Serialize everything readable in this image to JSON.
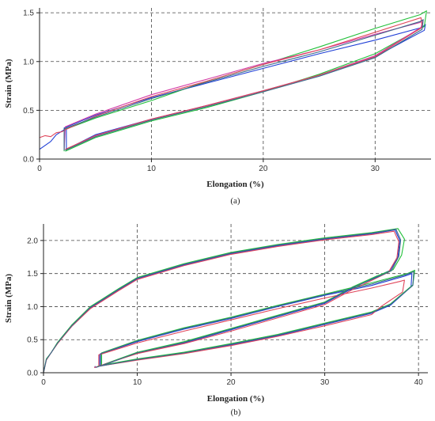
{
  "chart_data": [
    {
      "type": "line",
      "panel_label": "(a)",
      "xlabel": "Elongation (%)",
      "ylabel": "Strain (MPa)",
      "xlim": [
        0,
        35
      ],
      "ylim": [
        0,
        1.55
      ],
      "xticks": [
        0,
        10,
        20,
        30
      ],
      "yticks": [
        0.0,
        0.5,
        1.0,
        1.5
      ],
      "ytick_labels": [
        "0.0",
        "0.5",
        "1.0",
        "1.5"
      ],
      "grid": true,
      "series": [
        {
          "color": "#1f3fd6",
          "x": [
            0,
            1.0,
            1.5,
            2.2,
            2.2,
            5,
            10,
            15,
            20,
            25,
            30,
            34.2,
            34.5,
            34.4,
            30,
            25,
            20,
            15,
            10,
            5,
            2.4,
            2.4
          ],
          "y": [
            0.1,
            0.18,
            0.25,
            0.3,
            0.32,
            0.45,
            0.63,
            0.78,
            0.93,
            1.08,
            1.22,
            1.35,
            1.38,
            1.32,
            1.05,
            0.86,
            0.7,
            0.55,
            0.41,
            0.25,
            0.1,
            0.32
          ]
        },
        {
          "color": "#22c03a",
          "x": [
            2.2,
            2.2,
            5,
            10,
            15,
            20,
            25,
            30,
            34.0,
            34.6,
            34.4,
            30,
            25,
            20,
            15,
            10,
            5,
            2.3
          ],
          "y": [
            0.08,
            0.3,
            0.42,
            0.6,
            0.8,
            0.97,
            1.15,
            1.34,
            1.48,
            1.52,
            1.36,
            1.08,
            0.87,
            0.69,
            0.53,
            0.39,
            0.22,
            0.08
          ]
        },
        {
          "color": "#d43aa5",
          "x": [
            2.2,
            2.3,
            5,
            10,
            15,
            20,
            25,
            30,
            34.0,
            34.3,
            34.1,
            30,
            25,
            20,
            15,
            10,
            5,
            2.4
          ],
          "y": [
            0.1,
            0.33,
            0.46,
            0.66,
            0.82,
            0.98,
            1.12,
            1.28,
            1.4,
            1.43,
            1.35,
            1.06,
            0.86,
            0.7,
            0.55,
            0.41,
            0.24,
            0.1
          ]
        },
        {
          "color": "#e0455a",
          "x": [
            0,
            0.5,
            1.0,
            1.5,
            2.0,
            2.3,
            5,
            10,
            15,
            20,
            25,
            30,
            34.1,
            34.2,
            30,
            25,
            20,
            15,
            10,
            5,
            2.3
          ],
          "y": [
            0.22,
            0.24,
            0.23,
            0.27,
            0.28,
            0.3,
            0.44,
            0.64,
            0.8,
            0.97,
            1.12,
            1.3,
            1.45,
            1.35,
            1.05,
            0.86,
            0.7,
            0.55,
            0.41,
            0.24,
            0.1
          ]
        },
        {
          "color": "#3a6a8a",
          "x": [
            2.2,
            2.2,
            5,
            10,
            15,
            20,
            25,
            30,
            34.0,
            34.3,
            34.2,
            30,
            25,
            20,
            15,
            10,
            5,
            2.3
          ],
          "y": [
            0.09,
            0.31,
            0.43,
            0.62,
            0.79,
            0.95,
            1.1,
            1.27,
            1.41,
            1.43,
            1.33,
            1.04,
            0.85,
            0.69,
            0.54,
            0.4,
            0.23,
            0.09
          ]
        }
      ]
    },
    {
      "type": "line",
      "panel_label": "(b)",
      "xlabel": "Elongation (%)",
      "ylabel": "Strain (MPa)",
      "xlim": [
        0,
        41
      ],
      "ylim": [
        0,
        2.25
      ],
      "xticks": [
        0,
        10,
        20,
        30,
        40
      ],
      "yticks": [
        0.0,
        0.5,
        1.0,
        1.5,
        2.0
      ],
      "ytick_labels": [
        "0.0",
        "0.5",
        "1.0",
        "1.5",
        "2.0"
      ],
      "grid": true,
      "series": [
        {
          "color": "#1f3fd6",
          "x": [
            0,
            0.3,
            0.8,
            1.5,
            3,
            5,
            8,
            10,
            15,
            20,
            25,
            30,
            35,
            37.5,
            38.0,
            37.8,
            37.0,
            35.5,
            33,
            30,
            25,
            20,
            15,
            10,
            6.5,
            6.0,
            6.0,
            10,
            15,
            20,
            25,
            30,
            35,
            38.5,
            39.3,
            39.2,
            37,
            35,
            30,
            25,
            20,
            15,
            10,
            6,
            5.5,
            5.5
          ],
          "y": [
            0,
            0.2,
            0.3,
            0.45,
            0.7,
            0.98,
            1.25,
            1.42,
            1.63,
            1.8,
            1.92,
            2.02,
            2.1,
            2.16,
            2.0,
            1.75,
            1.55,
            1.45,
            1.28,
            1.05,
            0.85,
            0.65,
            0.45,
            0.3,
            0.12,
            0.1,
            0.28,
            0.47,
            0.66,
            0.82,
            1.0,
            1.17,
            1.32,
            1.46,
            1.5,
            1.3,
            1.02,
            0.9,
            0.73,
            0.56,
            0.42,
            0.3,
            0.2,
            0.1,
            0.08,
            0.1
          ]
        },
        {
          "color": "#22c03a",
          "x": [
            0,
            0.3,
            0.8,
            1.5,
            3,
            5,
            8,
            10,
            15,
            20,
            25,
            30,
            35,
            37.8,
            38.5,
            38.2,
            37.3,
            35.5,
            33,
            30,
            25,
            20,
            15,
            10,
            6.5,
            6.2,
            6.2,
            10,
            15,
            20,
            25,
            30,
            35,
            38.8,
            39.6,
            39.4,
            37,
            35,
            30,
            25,
            20,
            15,
            10,
            6,
            5.7
          ],
          "y": [
            0,
            0.21,
            0.3,
            0.46,
            0.72,
            1.0,
            1.27,
            1.44,
            1.65,
            1.82,
            1.94,
            2.04,
            2.12,
            2.18,
            2.02,
            1.78,
            1.56,
            1.46,
            1.3,
            1.07,
            0.87,
            0.67,
            0.47,
            0.31,
            0.13,
            0.11,
            0.3,
            0.49,
            0.68,
            0.84,
            1.02,
            1.19,
            1.36,
            1.5,
            1.55,
            1.33,
            1.04,
            0.92,
            0.75,
            0.58,
            0.44,
            0.31,
            0.21,
            0.11,
            0.09
          ]
        },
        {
          "color": "#e0455a",
          "x": [
            0,
            0.3,
            0.8,
            1.5,
            3,
            5,
            8,
            10,
            15,
            20,
            25,
            30,
            35,
            37.4,
            37.9,
            37.7,
            36.8,
            35.5,
            33,
            30,
            25,
            20,
            15,
            10,
            6.3,
            5.9,
            5.9,
            10,
            15,
            20,
            25,
            30,
            35,
            38.0,
            38.5,
            38.3,
            36,
            35,
            30,
            25,
            20,
            15,
            10,
            6,
            5.4
          ],
          "y": [
            0,
            0.19,
            0.3,
            0.44,
            0.7,
            0.97,
            1.24,
            1.41,
            1.62,
            1.79,
            1.91,
            2.01,
            2.09,
            2.14,
            1.98,
            1.74,
            1.52,
            1.43,
            1.26,
            1.03,
            0.83,
            0.63,
            0.44,
            0.29,
            0.12,
            0.1,
            0.27,
            0.45,
            0.63,
            0.8,
            0.97,
            1.13,
            1.28,
            1.38,
            1.4,
            1.22,
            1.0,
            0.88,
            0.71,
            0.55,
            0.41,
            0.29,
            0.19,
            0.1,
            0.08
          ]
        },
        {
          "color": "#3a6a8a",
          "x": [
            0,
            0.3,
            0.8,
            1.5,
            3,
            5,
            8,
            10,
            15,
            20,
            25,
            30,
            35,
            37.6,
            38.1,
            37.9,
            37.1,
            35.5,
            33,
            30,
            25,
            20,
            15,
            10,
            6.4,
            6.1,
            6.1,
            10,
            15,
            20,
            25,
            30,
            35,
            38.6,
            39.5,
            39.4,
            37,
            35,
            30,
            25,
            20,
            15,
            10,
            6,
            5.6
          ],
          "y": [
            0,
            0.2,
            0.3,
            0.45,
            0.71,
            0.99,
            1.26,
            1.43,
            1.64,
            1.81,
            1.93,
            2.03,
            2.11,
            2.17,
            2.01,
            1.76,
            1.54,
            1.44,
            1.29,
            1.06,
            0.86,
            0.66,
            0.46,
            0.3,
            0.12,
            0.1,
            0.29,
            0.48,
            0.67,
            0.83,
            1.01,
            1.18,
            1.34,
            1.48,
            1.53,
            1.32,
            1.03,
            0.91,
            0.74,
            0.57,
            0.43,
            0.3,
            0.2,
            0.1,
            0.08
          ]
        }
      ]
    }
  ]
}
